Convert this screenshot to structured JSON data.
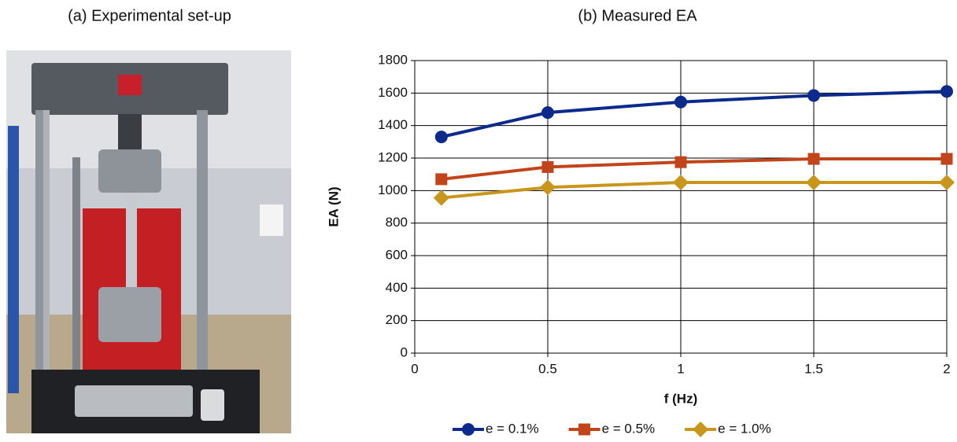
{
  "panels": [
    {
      "title": "(a) Experimental set-up"
    }
  ],
  "chart_data": {
    "type": "line",
    "title": "(b) Measured EA",
    "xlabel": "f (Hz)",
    "ylabel": "EA (N)",
    "x": [
      0.1,
      0.5,
      1,
      1.5,
      2
    ],
    "series": [
      {
        "name": "e = 0.1%",
        "color": "#0b2a8c",
        "marker": "circle",
        "values": [
          1330,
          1480,
          1545,
          1585,
          1610
        ]
      },
      {
        "name": "e = 0.5%",
        "color": "#c1441b",
        "marker": "square",
        "values": [
          1070,
          1145,
          1175,
          1195,
          1195
        ]
      },
      {
        "name": "e = 1.0%",
        "color": "#c9961c",
        "marker": "diamond",
        "values": [
          955,
          1020,
          1050,
          1050,
          1050
        ]
      }
    ],
    "xlim": [
      0,
      2
    ],
    "xticks": [
      0,
      0.5,
      1,
      1.5,
      2
    ],
    "ylim": [
      0,
      1800
    ],
    "yticks": [
      0,
      200,
      400,
      600,
      800,
      1000,
      1200,
      1400,
      1600,
      1800
    ],
    "grid": true,
    "legend": "bottom"
  }
}
